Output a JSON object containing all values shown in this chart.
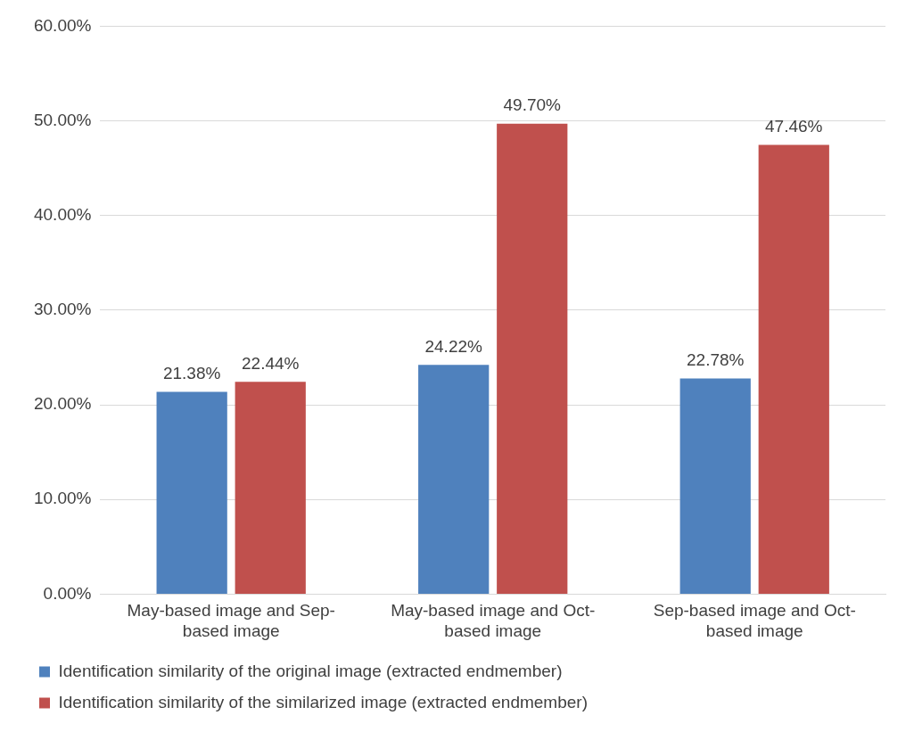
{
  "chart_data": {
    "type": "bar",
    "categories": [
      "May-based image and Sep-based image",
      "May-based image and Oct-based image",
      "Sep-based image and Oct-based image"
    ],
    "series": [
      {
        "name": "Identification similarity of the original image (extracted endmember)",
        "color": "#4f81bd",
        "values": [
          21.38,
          24.22,
          22.78
        ],
        "value_labels": [
          "21.38%",
          "24.22%",
          "22.78%"
        ]
      },
      {
        "name": "Identification similarity of the similarized image (extracted endmember)",
        "color": "#c0504d",
        "values": [
          22.44,
          49.7,
          47.46
        ],
        "value_labels": [
          "22.44%",
          "49.70%",
          "47.46%"
        ]
      }
    ],
    "ylim": [
      0,
      60
    ],
    "yticks": [
      {
        "value": 0,
        "label": "0.00%"
      },
      {
        "value": 10,
        "label": "10.00%"
      },
      {
        "value": 20,
        "label": "20.00%"
      },
      {
        "value": 30,
        "label": "30.00%"
      },
      {
        "value": 40,
        "label": "40.00%"
      },
      {
        "value": 50,
        "label": "50.00%"
      },
      {
        "value": 60,
        "label": "60.00%"
      }
    ],
    "grid": "y",
    "legend": "bottom"
  }
}
